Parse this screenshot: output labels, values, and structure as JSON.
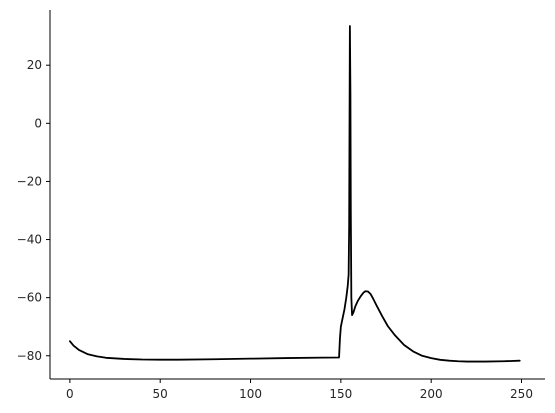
{
  "chart_data": {
    "type": "line",
    "title": "",
    "xlabel": "",
    "ylabel": "",
    "xlim": [
      -11,
      263
    ],
    "ylim": [
      -88,
      39
    ],
    "grid": false,
    "x_ticks": [
      0,
      50,
      100,
      150,
      200,
      250
    ],
    "y_ticks": [
      20,
      0,
      -20,
      -40,
      -60,
      -80
    ],
    "x_tick_labels": [
      "0",
      "50",
      "100",
      "150",
      "200",
      "250"
    ],
    "y_tick_labels": [
      "20",
      "0",
      "−20",
      "−40",
      "−60",
      "−80"
    ],
    "series": [
      {
        "color": "#000000",
        "points": [
          [
            0,
            -75.0
          ],
          [
            2,
            -76.5
          ],
          [
            5,
            -78.0
          ],
          [
            10,
            -79.5
          ],
          [
            15,
            -80.2
          ],
          [
            20,
            -80.7
          ],
          [
            30,
            -81.1
          ],
          [
            40,
            -81.3
          ],
          [
            50,
            -81.35
          ],
          [
            60,
            -81.35
          ],
          [
            80,
            -81.2
          ],
          [
            100,
            -81.0
          ],
          [
            120,
            -80.8
          ],
          [
            140,
            -80.65
          ],
          [
            149,
            -80.6
          ],
          [
            149.5,
            -74.0
          ],
          [
            150,
            -70.0
          ],
          [
            151,
            -67.0
          ],
          [
            152,
            -64.0
          ],
          [
            153,
            -60.0
          ],
          [
            153.8,
            -56.0
          ],
          [
            154.3,
            -52.0
          ],
          [
            154.6,
            -35.0
          ],
          [
            154.8,
            0.0
          ],
          [
            155,
            33.5
          ],
          [
            155.3,
            10.0
          ],
          [
            155.5,
            -30.0
          ],
          [
            155.8,
            -60.0
          ],
          [
            156.2,
            -66.0
          ],
          [
            157,
            -65.0
          ],
          [
            158,
            -63.0
          ],
          [
            159.5,
            -61.0
          ],
          [
            161,
            -59.5
          ],
          [
            162.5,
            -58.3
          ],
          [
            163.5,
            -57.8
          ],
          [
            165,
            -57.9
          ],
          [
            166.5,
            -58.8
          ],
          [
            168,
            -60.5
          ],
          [
            170,
            -63.0
          ],
          [
            173,
            -66.5
          ],
          [
            176,
            -69.8
          ],
          [
            180,
            -73.0
          ],
          [
            185,
            -76.3
          ],
          [
            190,
            -78.5
          ],
          [
            195,
            -80.0
          ],
          [
            200,
            -80.8
          ],
          [
            205,
            -81.4
          ],
          [
            210,
            -81.7
          ],
          [
            215,
            -81.9
          ],
          [
            220,
            -82.0
          ],
          [
            230,
            -82.0
          ],
          [
            240,
            -81.9
          ],
          [
            249,
            -81.7
          ]
        ]
      }
    ]
  }
}
